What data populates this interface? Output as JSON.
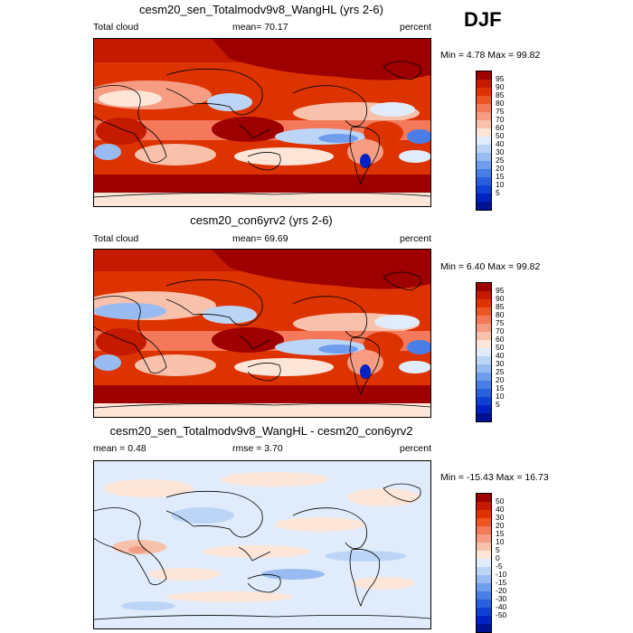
{
  "season": "DJF",
  "panels": [
    {
      "title": "cesm20_sen_Totalmodv9v8_WangHL (yrs 2-6)",
      "left_label": "Total cloud",
      "center_label": "mean=  70.17",
      "right_label": "percent",
      "minmax": "Min =   4.78 Max =  99.82"
    },
    {
      "title": "cesm20_con6yrv2 (yrs 2-6)",
      "left_label": "Total cloud",
      "center_label": "mean=  69.69",
      "right_label": "percent",
      "minmax": "Min =   6.40 Max =  99.82"
    },
    {
      "title": "cesm20_sen_Totalmodv9v8_WangHL - cesm20_con6yrv2",
      "left_label": "mean =   0.48",
      "center_label": "rmse =   3.70",
      "right_label": "percent",
      "minmax": "Min = -15.43 Max =  16.73"
    }
  ],
  "colors": {
    "abs_scale": [
      "#9e0000",
      "#c41a00",
      "#dd3300",
      "#ee5522",
      "#f3795a",
      "#f59c83",
      "#f8c1ab",
      "#fde6d8",
      "#e0ecfb",
      "#bcd5f7",
      "#98bcf2",
      "#6f9cec",
      "#4a7ee6",
      "#2a5fe0",
      "#0f40d6",
      "#0022c4",
      "#001194"
    ],
    "diff_scale": [
      "#9e0000",
      "#c41a00",
      "#dd3300",
      "#ee5522",
      "#f3795a",
      "#f59c83",
      "#f8c1ab",
      "#fde6d8",
      "#e0ecfb",
      "#bcd5f7",
      "#98bcf2",
      "#6f9cec",
      "#4a7ee6",
      "#2a5fe0",
      "#0f40d6",
      "#0022c4",
      "#001194"
    ]
  },
  "chart_data": [
    {
      "type": "heatmap",
      "title": "cesm20_sen_Totalmodv9v8_WangHL (yrs 2-6)",
      "variable": "Total cloud",
      "units": "percent",
      "mean": 70.17,
      "min": 4.78,
      "max": 99.82,
      "levels": [
        95,
        90,
        85,
        80,
        75,
        70,
        60,
        50,
        40,
        30,
        25,
        20,
        15,
        10,
        5
      ]
    },
    {
      "type": "heatmap",
      "title": "cesm20_con6yrv2 (yrs 2-6)",
      "variable": "Total cloud",
      "units": "percent",
      "mean": 69.69,
      "min": 6.4,
      "max": 99.82,
      "levels": [
        95,
        90,
        85,
        80,
        75,
        70,
        60,
        50,
        40,
        30,
        25,
        20,
        15,
        10,
        5
      ]
    },
    {
      "type": "heatmap",
      "title": "cesm20_sen_Totalmodv9v8_WangHL - cesm20_con6yrv2",
      "units": "percent",
      "mean": 0.48,
      "rmse": 3.7,
      "min": -15.43,
      "max": 16.73,
      "levels": [
        50,
        40,
        30,
        20,
        15,
        10,
        5,
        0,
        -5,
        -10,
        -15,
        -20,
        -30,
        -40,
        -50
      ]
    }
  ]
}
